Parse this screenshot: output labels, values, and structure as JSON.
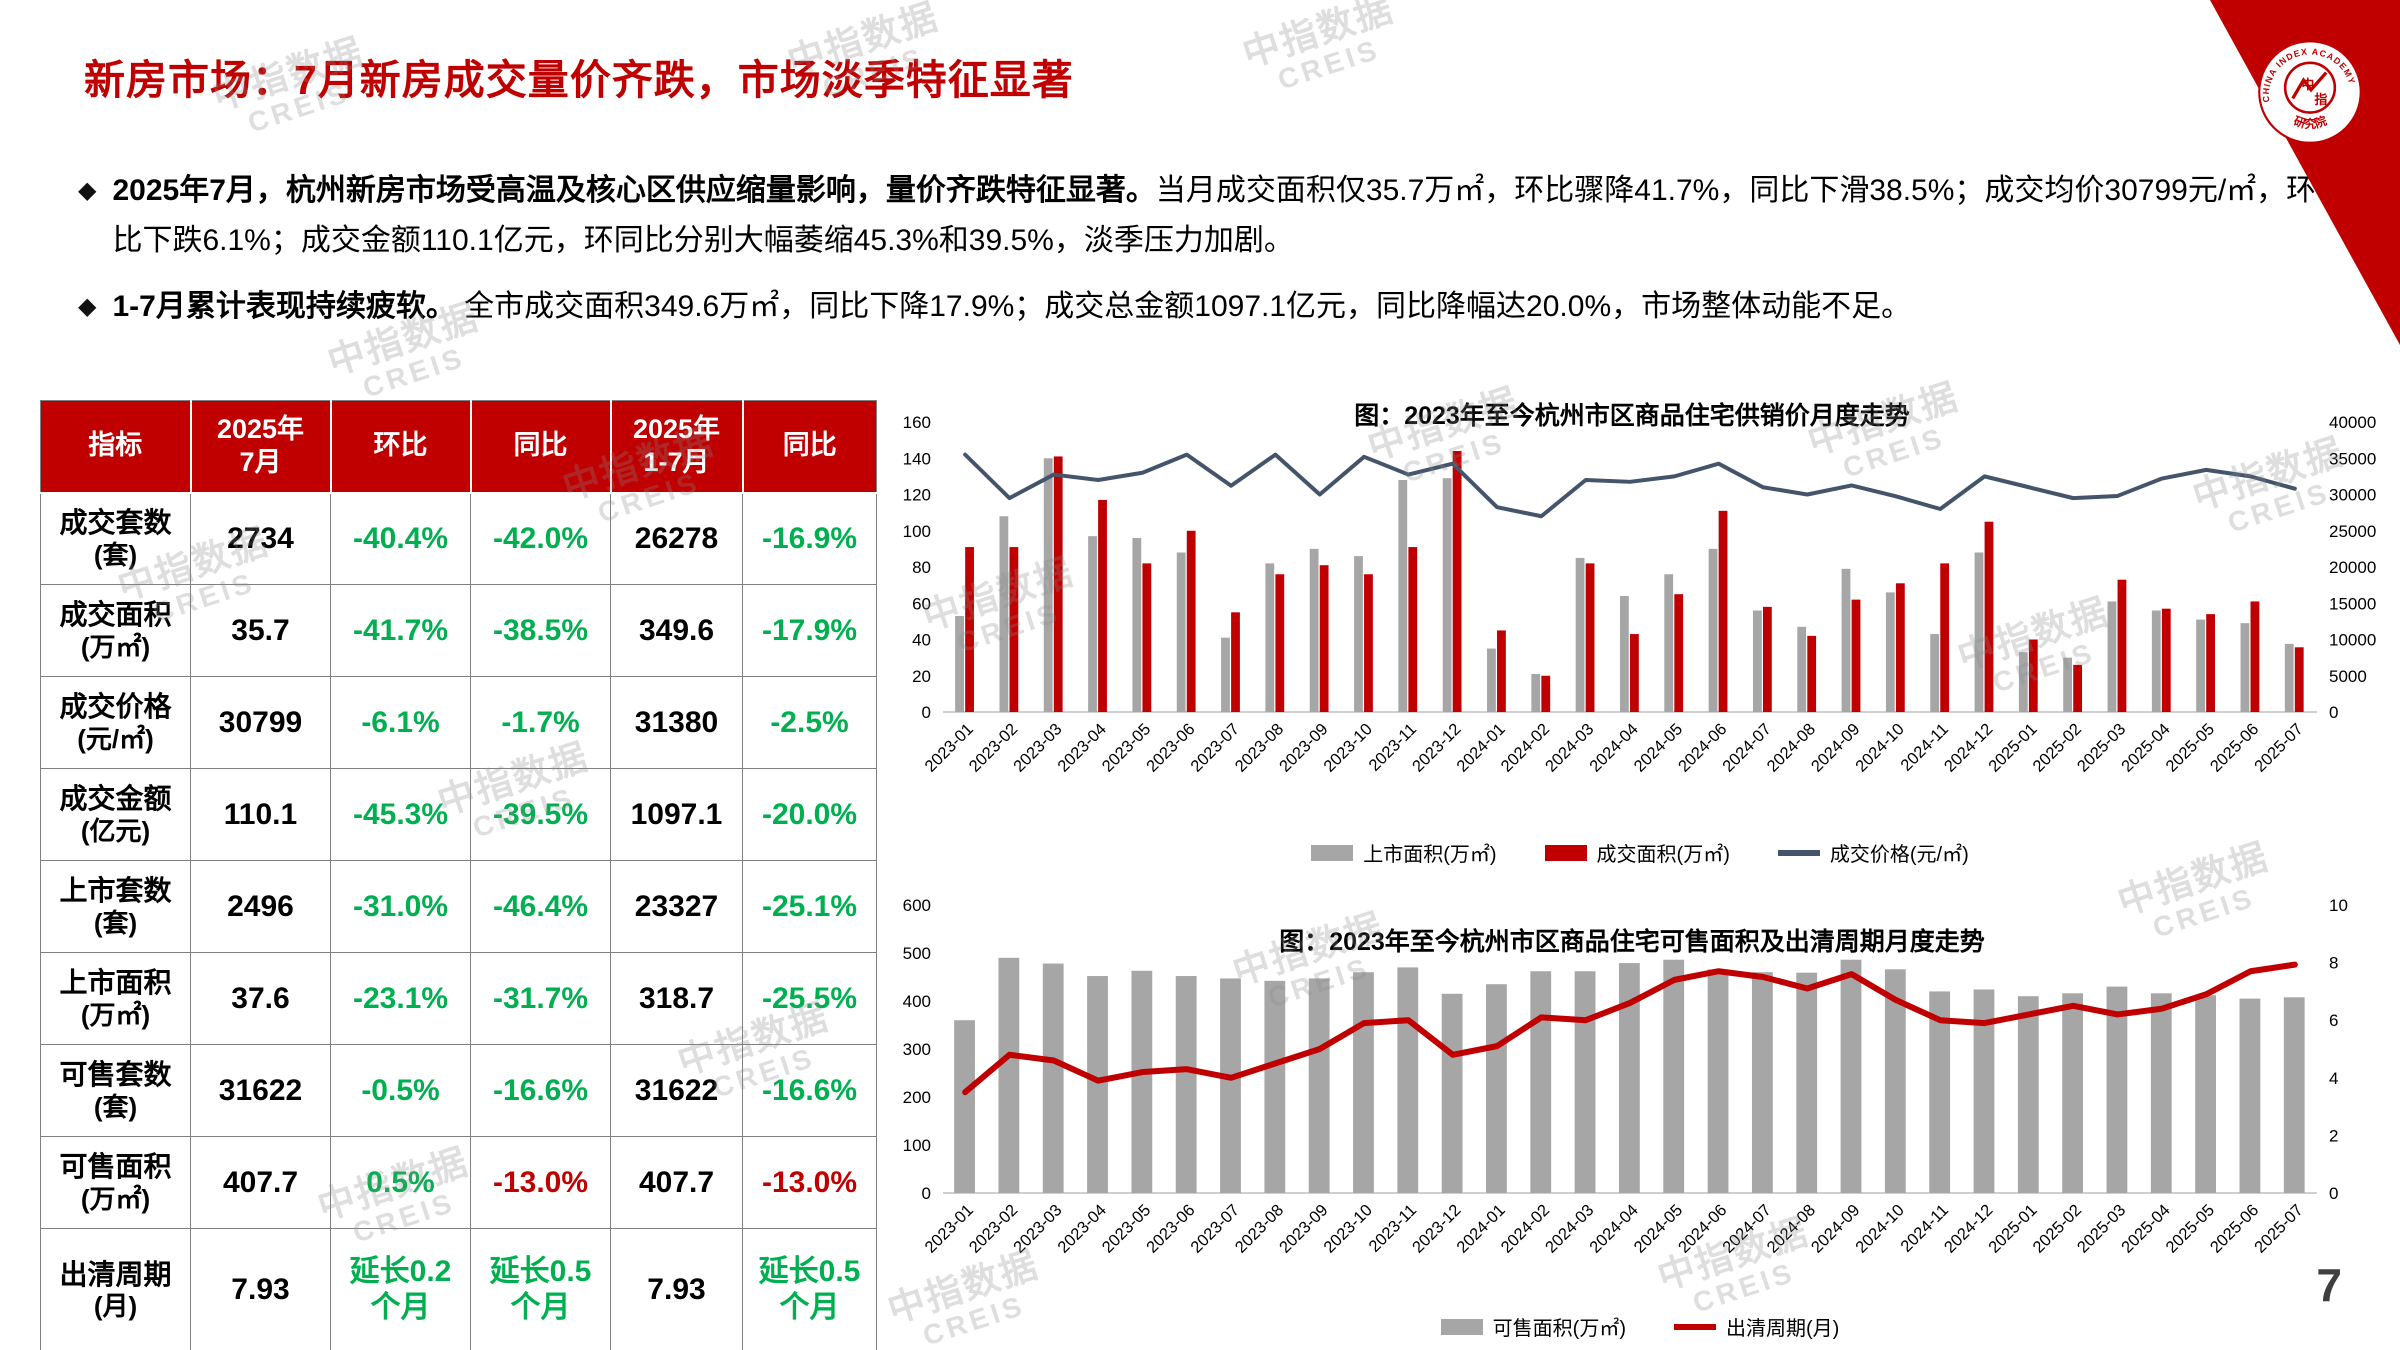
{
  "page": {
    "title": "新房市场：7月新房成交量价齐跌，市场淡季特征显著",
    "page_number": "7"
  },
  "theme": {
    "red": "#C00000",
    "green": "#00B050",
    "gray_bar": "#A6A6A6",
    "price_line": "#44546A",
    "text": "#000000"
  },
  "logo": {
    "arc_text": "CHINA INDEX ACADEMY",
    "bottom_text": "研究院",
    "char1": "中",
    "char2": "指"
  },
  "watermark": {
    "line1": "中指数据",
    "line2": "CREIS"
  },
  "bullets": {
    "marker": "◆",
    "items": [
      {
        "bold": "2025年7月，杭州新房市场受高温及核心区供应缩量影响，量价齐跌特征显著。",
        "text": "当月成交面积仅35.7万㎡，环比骤降41.7%，同比下滑38.5%；成交均价30799元/㎡，环比下跌6.1%；成交金额110.1亿元，环同比分别大幅萎缩45.3%和39.5%，淡季压力加剧。"
      },
      {
        "bold": "1-7月累计表现持续疲软。",
        "text": " 全市成交面积349.6万㎡，同比下降17.9%；成交总金额1097.1亿元，同比降幅达20.0%，市场整体动能不足。"
      }
    ]
  },
  "table": {
    "headers": [
      "指标",
      "2025年\n7月",
      "环比",
      "同比",
      "2025年\n1-7月",
      "同比"
    ],
    "rows": [
      {
        "label": "成交套数",
        "unit": "(套)",
        "cells": [
          "2734",
          "-40.4%",
          "-42.0%",
          "26278",
          "-16.9%"
        ]
      },
      {
        "label": "成交面积",
        "unit": "(万㎡)",
        "cells": [
          "35.7",
          "-41.7%",
          "-38.5%",
          "349.6",
          "-17.9%"
        ]
      },
      {
        "label": "成交价格",
        "unit": "(元/㎡)",
        "cells": [
          "30799",
          "-6.1%",
          "-1.7%",
          "31380",
          "-2.5%"
        ]
      },
      {
        "label": "成交金额",
        "unit": "(亿元)",
        "cells": [
          "110.1",
          "-45.3%",
          "-39.5%",
          "1097.1",
          "-20.0%"
        ]
      },
      {
        "label": "上市套数",
        "unit": "(套)",
        "cells": [
          "2496",
          "-31.0%",
          "-46.4%",
          "23327",
          "-25.1%"
        ]
      },
      {
        "label": "上市面积",
        "unit": "(万㎡)",
        "cells": [
          "37.6",
          "-23.1%",
          "-31.7%",
          "318.7",
          "-25.5%"
        ]
      },
      {
        "label": "可售套数",
        "unit": "(套)",
        "cells": [
          "31622",
          "-0.5%",
          "-16.6%",
          "31622",
          "-16.6%"
        ]
      },
      {
        "label": "可售面积",
        "unit": "(万㎡)",
        "cells": [
          "407.7",
          "0.5%",
          "-13.0%",
          "407.7",
          "-13.0%"
        ]
      },
      {
        "label": "出清周期",
        "unit": "(月)",
        "cells": [
          "7.93",
          "延长0.2\n个月",
          "延长0.5\n个月",
          "7.93",
          "延长0.5\n个月"
        ]
      }
    ]
  },
  "chart_data": [
    {
      "name": "supply-sales-price-chart",
      "type": "bar+line",
      "title": "图：2023年至今杭州市区商品住宅供销价月度走势",
      "legend_position": "bottom",
      "categories": [
        "2023-01",
        "2023-02",
        "2023-03",
        "2023-04",
        "2023-05",
        "2023-06",
        "2023-07",
        "2023-08",
        "2023-09",
        "2023-10",
        "2023-11",
        "2023-12",
        "2024-01",
        "2024-02",
        "2024-03",
        "2024-04",
        "2024-05",
        "2024-06",
        "2024-07",
        "2024-08",
        "2024-09",
        "2024-10",
        "2024-11",
        "2024-12",
        "2025-01",
        "2025-02",
        "2025-03",
        "2025-04",
        "2025-05",
        "2025-06",
        "2025-07"
      ],
      "left_axis": {
        "min": 0,
        "max": 160,
        "step": 20
      },
      "right_axis": {
        "min": 0,
        "max": 40000,
        "step": 5000
      },
      "series": [
        {
          "name": "上市面积(万㎡)",
          "type": "bar",
          "axis": "left",
          "color": "#A6A6A6",
          "values": [
            53,
            108,
            140,
            97,
            96,
            88,
            41,
            82,
            90,
            86,
            128,
            129,
            35,
            21,
            85,
            64,
            76,
            90,
            56,
            47,
            79,
            66,
            43,
            88,
            33,
            30,
            61,
            56,
            51,
            49,
            37.6
          ]
        },
        {
          "name": "成交面积(万㎡)",
          "type": "bar",
          "axis": "left",
          "color": "#C00000",
          "values": [
            91,
            91,
            141,
            117,
            82,
            100,
            55,
            76,
            81,
            76,
            91,
            144,
            45,
            20,
            82,
            43,
            65,
            111,
            58,
            42,
            62,
            71,
            82,
            105,
            40,
            26,
            73,
            57,
            54,
            61,
            35.7
          ]
        },
        {
          "name": "成交价格(元/㎡)",
          "type": "line",
          "axis": "right",
          "color": "#44546A",
          "width": 4,
          "values": [
            35500,
            29500,
            32750,
            32000,
            33000,
            35500,
            31200,
            35500,
            30000,
            35200,
            32750,
            34250,
            28250,
            27000,
            32000,
            31750,
            32500,
            34250,
            31000,
            30000,
            31250,
            29750,
            28000,
            32500,
            31000,
            29500,
            29800,
            32200,
            33400,
            32500,
            30799
          ]
        }
      ]
    },
    {
      "name": "inventory-clearing-chart",
      "type": "bar+line",
      "title": "图：2023年至今杭州市区商品住宅可售面积及出清周期月度走势",
      "legend_position": "bottom",
      "categories": [
        "2023-01",
        "2023-02",
        "2023-03",
        "2023-04",
        "2023-05",
        "2023-06",
        "2023-07",
        "2023-08",
        "2023-09",
        "2023-10",
        "2023-11",
        "2023-12",
        "2024-01",
        "2024-02",
        "2024-03",
        "2024-04",
        "2024-05",
        "2024-06",
        "2024-07",
        "2024-08",
        "2024-09",
        "2024-10",
        "2024-11",
        "2024-12",
        "2025-01",
        "2025-02",
        "2025-03",
        "2025-04",
        "2025-05",
        "2025-06",
        "2025-07"
      ],
      "left_axis": {
        "min": 0,
        "max": 600,
        "step": 100
      },
      "right_axis": {
        "min": 0,
        "max": 10,
        "step": 2
      },
      "series": [
        {
          "name": "可售面积(万㎡)",
          "type": "bar",
          "axis": "left",
          "color": "#A6A6A6",
          "values": [
            360,
            490,
            478,
            452,
            463,
            452,
            447,
            442,
            447,
            460,
            470,
            415,
            435,
            462,
            462,
            479,
            486,
            466,
            460,
            459,
            486,
            466,
            420,
            424,
            410,
            416,
            430,
            416,
            412,
            405,
            407.7
          ]
        },
        {
          "name": "出清周期(月)",
          "type": "line",
          "axis": "right",
          "color": "#C00000",
          "width": 6,
          "values": [
            3.5,
            4.8,
            4.6,
            3.9,
            4.2,
            4.3,
            4.0,
            4.5,
            5.0,
            5.9,
            6.0,
            4.8,
            5.1,
            6.1,
            6.0,
            6.6,
            7.4,
            7.7,
            7.5,
            7.1,
            7.6,
            6.7,
            6.0,
            5.9,
            6.2,
            6.5,
            6.2,
            6.4,
            6.9,
            7.7,
            7.93
          ]
        }
      ]
    }
  ]
}
